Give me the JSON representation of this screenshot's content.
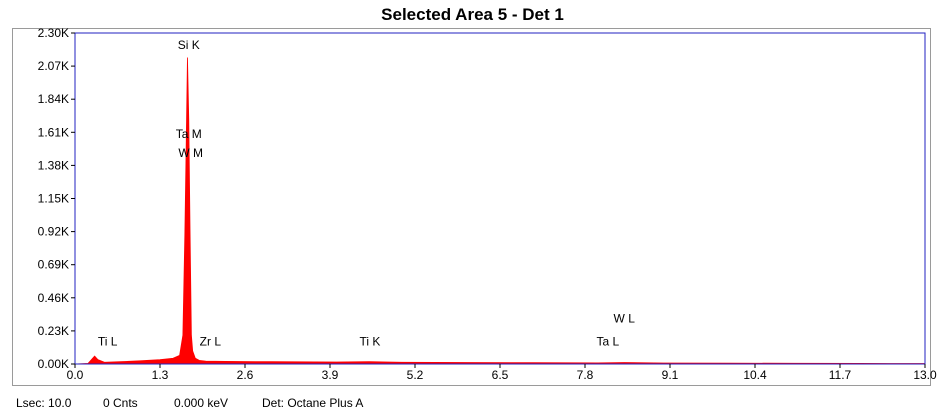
{
  "chart_data": {
    "type": "line",
    "title": "Selected Area 5 - Det 1",
    "xlabel": "",
    "ylabel": "",
    "xlim": [
      0.0,
      13.0
    ],
    "ylim": [
      0,
      2300
    ],
    "x_ticks": [
      "0.0",
      "1.3",
      "2.6",
      "3.9",
      "5.2",
      "6.5",
      "7.8",
      "9.1",
      "10.4",
      "11.7",
      "13.0"
    ],
    "y_ticks": [
      "0.00K",
      "0.23K",
      "0.46K",
      "0.69K",
      "0.92K",
      "1.15K",
      "1.38K",
      "1.61K",
      "1.84K",
      "2.07K",
      "2.30K"
    ],
    "series": [
      {
        "x": [
          0.0,
          0.2,
          0.27,
          0.3,
          0.35,
          0.45,
          0.7,
          1.0,
          1.3,
          1.5,
          1.6,
          1.65,
          1.68,
          1.7,
          1.72,
          1.74,
          1.76,
          1.78,
          1.8,
          1.84,
          1.9,
          2.0,
          2.3,
          3.0,
          4.0,
          4.5,
          5.0,
          6.0,
          7.0,
          8.0,
          8.4,
          9.0,
          10.0,
          11.0,
          12.0,
          13.0
        ],
        "y": [
          0,
          4,
          40,
          55,
          30,
          12,
          16,
          22,
          30,
          40,
          60,
          200,
          900,
          1500,
          2130,
          1700,
          900,
          200,
          90,
          40,
          25,
          20,
          18,
          16,
          14,
          16,
          12,
          10,
          9,
          8,
          10,
          7,
          6,
          5,
          4,
          3
        ],
        "color": "#ff0000"
      }
    ],
    "annotations": [
      {
        "label": "Si K",
        "x": 1.74,
        "y": 2190
      },
      {
        "label": "Ta M",
        "x": 1.74,
        "y": 1570
      },
      {
        "label": "W  M",
        "x": 1.77,
        "y": 1440
      },
      {
        "label": "Ti L",
        "x": 0.5,
        "y": 130
      },
      {
        "label": "Zr L",
        "x": 2.07,
        "y": 130
      },
      {
        "label": "Ti K",
        "x": 4.51,
        "y": 130
      },
      {
        "label": "W  L",
        "x": 8.4,
        "y": 290
      },
      {
        "label": "Ta L",
        "x": 8.15,
        "y": 130
      }
    ],
    "grid": false,
    "legend": "none"
  },
  "status_bar": {
    "lsec": "Lsec: 10.0",
    "counts": "0 Cnts",
    "energy": "0.000 keV",
    "detector": "Det: Octane Plus A"
  },
  "colors": {
    "spectrum": "#ff0000",
    "plot_border": "#2020c0",
    "frame_border": "#9a9a9a"
  }
}
